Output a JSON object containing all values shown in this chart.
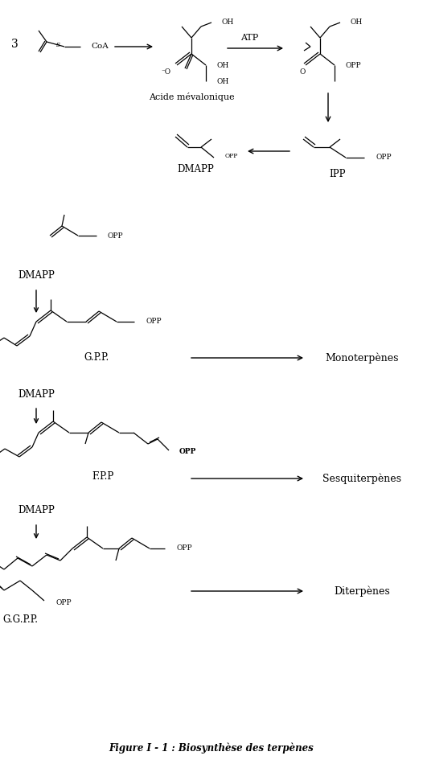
{
  "title": "Figure I - 1 : Biosynthèse des terpènes",
  "title_fontsize": 8.5,
  "bg_color": "#ffffff",
  "text_color": "#000000",
  "fig_width": 5.26,
  "fig_height": 9.5,
  "dpi": 100,
  "labels": {
    "acide_mevalonic": "Acide mévalonique",
    "atp": "ATP",
    "dmapp": "DMAPP",
    "ipp": "IPP",
    "gpp": "G.P.P.",
    "fpp": "F.P.P",
    "ggpp": "G.G.P.P.",
    "opp": "OPP",
    "opp_bold": "OPP",
    "monoterpenes": "Monoterpènes",
    "sesquiterpenes": "Sesquiterpènes",
    "diterpenes": "Diterpènes",
    "three": "3",
    "coa": "CoA",
    "oh": "OH",
    "o_minus": "⁻O"
  }
}
